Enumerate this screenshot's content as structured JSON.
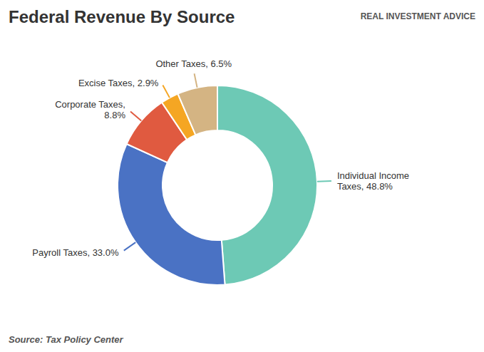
{
  "chart_data": {
    "type": "pie",
    "title": "Federal Revenue By Source",
    "categories": [
      "Individual Income\nTaxes, 48.8%",
      "Payroll Taxes, 33.0%",
      "Corporate Taxes,\n8.8%",
      "Excise Taxes, 2.9%",
      "Other Taxes, 6.5%"
    ],
    "values": [
      48.8,
      33.0,
      8.8,
      2.9,
      6.5
    ],
    "colors": [
      "#6dc9b5",
      "#4a72c4",
      "#e05a40",
      "#f5a623",
      "#d4b483"
    ],
    "annotations": [
      "Source: Tax Policy Center",
      "REAL INVESTMENT ADVICE"
    ]
  }
}
